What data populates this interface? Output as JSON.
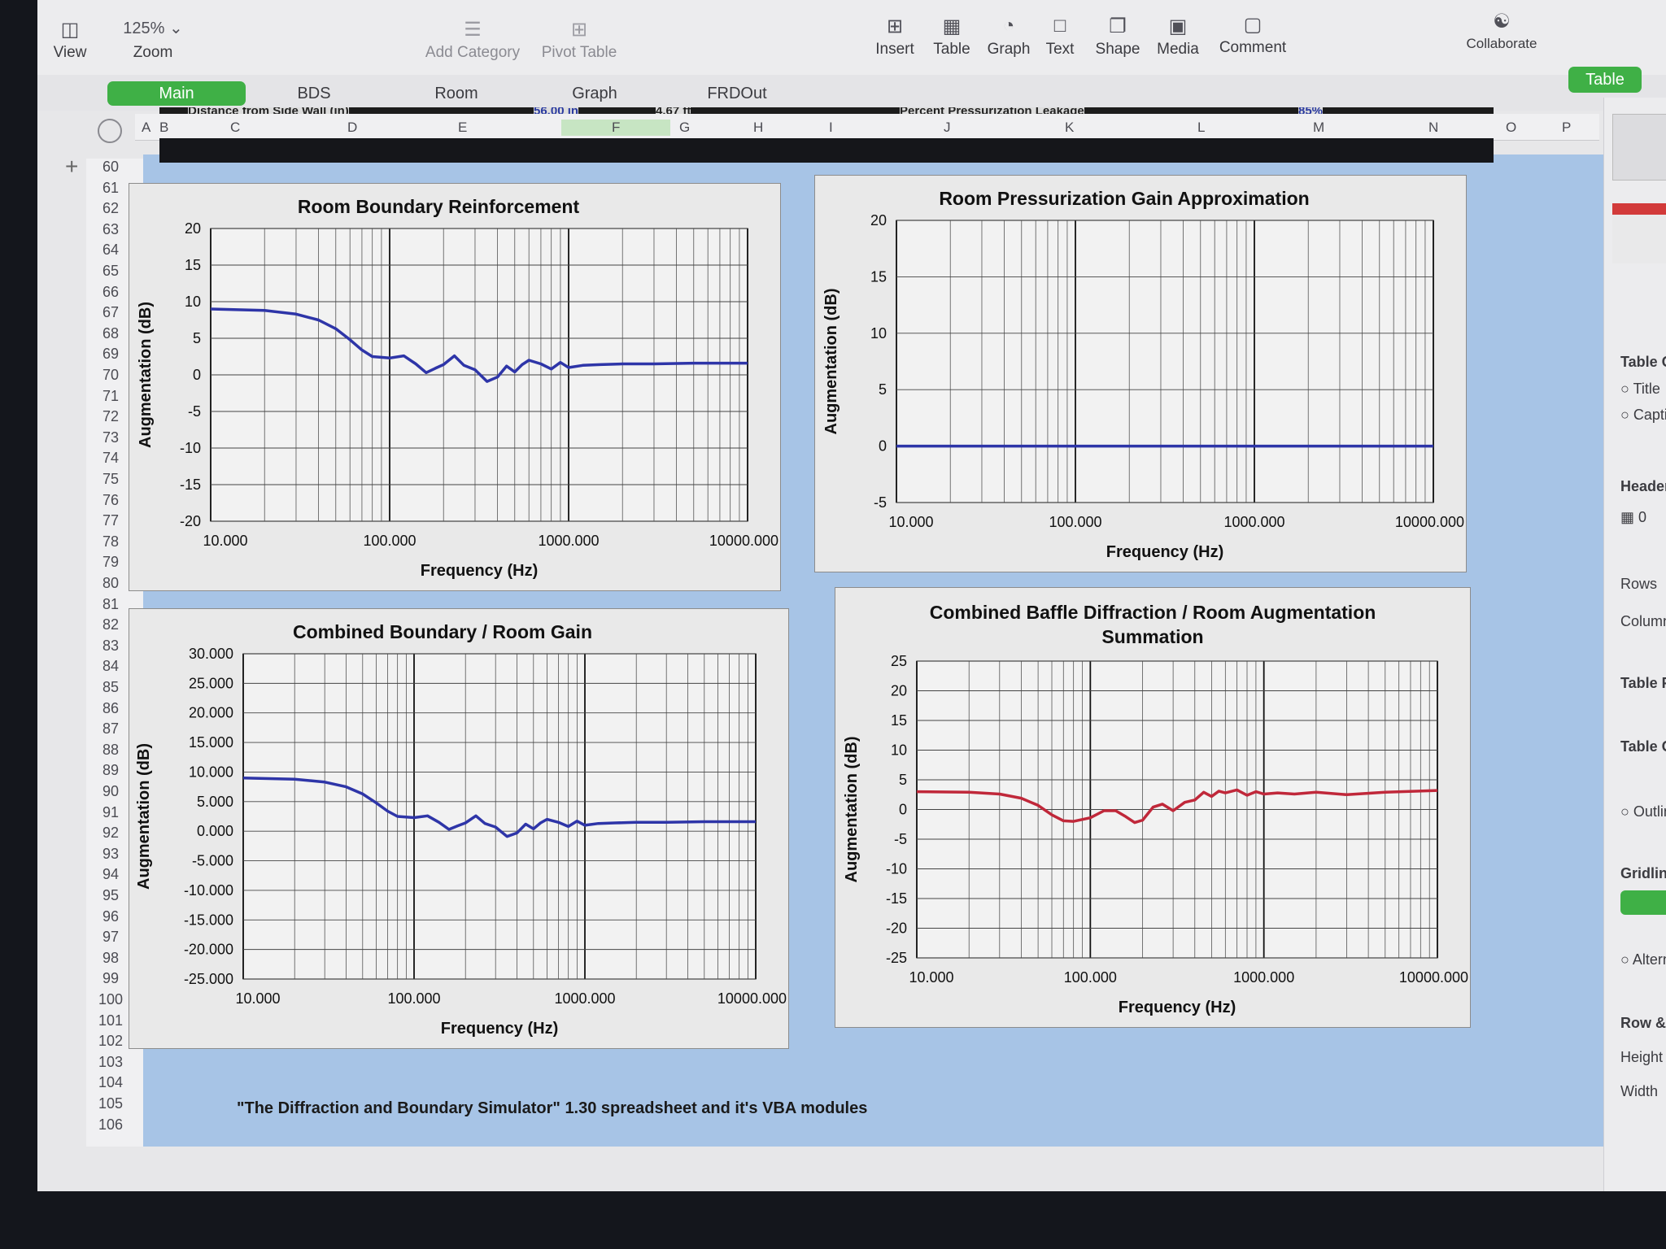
{
  "toolbar": {
    "view_label": "View",
    "zoom_value": "125%",
    "zoom_label": "Zoom",
    "add_category_label": "Add Category",
    "pivot_table_label": "Pivot Table",
    "insert_label": "Insert",
    "table_label": "Table",
    "graph_label": "Graph",
    "text_label": "Text",
    "shape_label": "Shape",
    "media_label": "Media",
    "comment_label": "Comment",
    "collaborate_label": "Collaborate"
  },
  "sheet_tabs": [
    "Main",
    "BDS",
    "Room",
    "Graph",
    "FRDOut"
  ],
  "format_tab_label": "Table",
  "column_headers": [
    "A",
    "B",
    "C",
    "D",
    "E",
    "F",
    "G",
    "H",
    "I",
    "J",
    "K",
    "L",
    "M",
    "N",
    "O",
    "P"
  ],
  "row_headers": [
    "60",
    "61",
    "62",
    "63",
    "64",
    "65",
    "66",
    "67",
    "68",
    "69",
    "70",
    "71",
    "72",
    "73",
    "74",
    "75",
    "76",
    "77",
    "78",
    "79",
    "80",
    "81",
    "82",
    "83",
    "84",
    "85",
    "86",
    "87",
    "88",
    "89",
    "90",
    "91",
    "92",
    "93",
    "94",
    "95",
    "96",
    "97",
    "98",
    "99",
    "100",
    "101",
    "102",
    "103",
    "104",
    "105",
    "106"
  ],
  "hidden_strip": {
    "left_text": "Distance from Side Wall (in)",
    "value_1": "56.00 in",
    "value_2": "4.67 ft",
    "right_text": "Percent Pressurization Leakage",
    "value_3": "85%"
  },
  "sidebar": {
    "table_options": "Table Optio",
    "title": "Title",
    "caption": "Caption",
    "headers": "Headers & F",
    "header_count": "0",
    "rows": "Rows",
    "columns": "Columns",
    "table_font": "Table Font S",
    "table_outline": "Table Outlin",
    "outline": "Outline T",
    "gridlines": "Gridlines",
    "alternating": "Alternatin",
    "row_col": "Row & Colur",
    "height": "Height",
    "width": "Width"
  },
  "footer_caption": "\"The Diffraction and Boundary Simulator\" 1.30 spreadsheet and it's VBA modules",
  "colors": {
    "blue_series": "#2e35a8",
    "red_series": "#c0283a",
    "accent": "#3fb046"
  },
  "chart_data": [
    {
      "type": "line",
      "title": "Room Boundary Reinforcement",
      "xlabel": "Frequency (Hz)",
      "ylabel": "Augmentation (dB)",
      "x_scale": "log",
      "xlim": [
        10,
        10000
      ],
      "ylim": [
        -20,
        20
      ],
      "xticks": [
        "10.000",
        "100.000",
        "1000.000",
        "10000.000"
      ],
      "yticks": [
        "20",
        "15",
        "10",
        "5",
        "0",
        "-5",
        "-10",
        "-15",
        "-20"
      ],
      "grid": true,
      "color": "#2e35a8",
      "x": [
        10,
        20,
        30,
        40,
        50,
        60,
        70,
        80,
        100,
        120,
        140,
        160,
        180,
        200,
        230,
        260,
        300,
        350,
        400,
        450,
        500,
        550,
        600,
        700,
        800,
        900,
        1000,
        1200,
        1500,
        2000,
        3000,
        5000,
        10000
      ],
      "values": [
        9,
        8.8,
        8.3,
        7.5,
        6.3,
        4.8,
        3.4,
        2.5,
        2.3,
        2.6,
        1.5,
        0.3,
        0.9,
        1.4,
        2.6,
        1.3,
        0.7,
        -0.9,
        -0.3,
        1.2,
        0.4,
        1.4,
        2.0,
        1.5,
        0.8,
        1.7,
        1.0,
        1.3,
        1.4,
        1.5,
        1.5,
        1.6,
        1.6
      ]
    },
    {
      "type": "line",
      "title": "Room Pressurization Gain Approximation",
      "xlabel": "Frequency (Hz)",
      "ylabel": "Augmentation (dB)",
      "x_scale": "log",
      "xlim": [
        10,
        10000
      ],
      "ylim": [
        -5,
        20
      ],
      "xticks": [
        "10.000",
        "100.000",
        "1000.000",
        "10000.000"
      ],
      "yticks": [
        "20",
        "15",
        "10",
        "5",
        "0",
        "-5"
      ],
      "grid": true,
      "color": "#2e35a8",
      "x": [
        10,
        100,
        1000,
        10000
      ],
      "values": [
        0,
        0,
        0,
        0
      ]
    },
    {
      "type": "line",
      "title": "Combined Boundary / Room Gain",
      "xlabel": "Frequency (Hz)",
      "ylabel": "Augmentation (dB)",
      "x_scale": "log",
      "xlim": [
        10,
        10000
      ],
      "ylim": [
        -25,
        30
      ],
      "xticks": [
        "10.000",
        "100.000",
        "1000.000",
        "10000.000"
      ],
      "yticks": [
        "30.000",
        "25.000",
        "20.000",
        "15.000",
        "10.000",
        "5.000",
        "0.000",
        "-5.000",
        "-10.000",
        "-15.000",
        "-20.000",
        "-25.000"
      ],
      "grid": true,
      "color": "#2e35a8",
      "x": [
        10,
        20,
        30,
        40,
        50,
        60,
        70,
        80,
        100,
        120,
        140,
        160,
        180,
        200,
        230,
        260,
        300,
        350,
        400,
        450,
        500,
        550,
        600,
        700,
        800,
        900,
        1000,
        1200,
        1500,
        2000,
        3000,
        5000,
        10000
      ],
      "values": [
        9,
        8.8,
        8.3,
        7.5,
        6.3,
        4.8,
        3.4,
        2.5,
        2.3,
        2.6,
        1.5,
        0.3,
        0.9,
        1.4,
        2.6,
        1.3,
        0.7,
        -0.9,
        -0.3,
        1.2,
        0.4,
        1.4,
        2.0,
        1.5,
        0.8,
        1.7,
        1.0,
        1.3,
        1.4,
        1.5,
        1.5,
        1.6,
        1.6
      ]
    },
    {
      "type": "line",
      "title": "Combined Baffle Diffraction / Room Augmentation Summation",
      "xlabel": "Frequency (Hz)",
      "ylabel": "Augmentation (dB)",
      "x_scale": "log",
      "xlim": [
        10,
        10000
      ],
      "ylim": [
        -25,
        25
      ],
      "xticks": [
        "10.000",
        "100.000",
        "1000.000",
        "10000.000"
      ],
      "yticks": [
        "25",
        "20",
        "15",
        "10",
        "5",
        "0",
        "-5",
        "-10",
        "-15",
        "-20",
        "-25"
      ],
      "grid": true,
      "color": "#c0283a",
      "x": [
        10,
        20,
        30,
        40,
        50,
        60,
        70,
        80,
        100,
        120,
        140,
        160,
        180,
        200,
        230,
        260,
        300,
        350,
        400,
        450,
        500,
        550,
        600,
        700,
        800,
        900,
        1000,
        1200,
        1500,
        2000,
        3000,
        5000,
        10000
      ],
      "values": [
        3,
        2.9,
        2.6,
        1.9,
        0.7,
        -0.9,
        -1.9,
        -2.0,
        -1.4,
        -0.2,
        -0.2,
        -1.2,
        -2.2,
        -1.8,
        0.4,
        0.9,
        -0.2,
        1.2,
        1.6,
        2.9,
        2.2,
        3.1,
        2.8,
        3.3,
        2.4,
        3.0,
        2.6,
        2.8,
        2.6,
        2.9,
        2.5,
        2.9,
        3.2
      ]
    }
  ]
}
